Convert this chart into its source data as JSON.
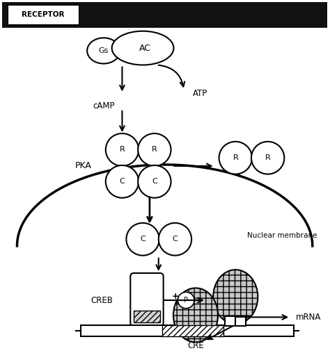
{
  "figsize": [
    4.74,
    5.08
  ],
  "dpi": 100,
  "bg_color": "#ffffff",
  "receptor_bar_color": "#111111",
  "receptor_text": "RECEPTOR",
  "Gs_label": "Gs",
  "AC_label": "AC",
  "ATP_text": "ATP",
  "cAMP_text": "cAMP",
  "PKA_text": "PKA",
  "nuclear_text": "Nuclear membrane",
  "CREB_text": "CREB",
  "mRNA_text": "mRNA",
  "CRE_text": "CRE",
  "plus_P_text": "+Ⓟ",
  "R_label": "R",
  "C_label": "C"
}
